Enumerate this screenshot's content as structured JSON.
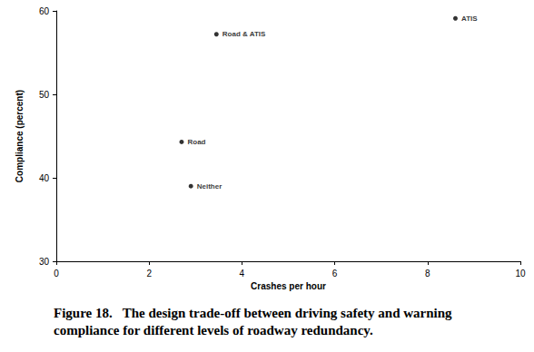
{
  "chart_data": {
    "type": "scatter",
    "title": "Figure 18.   The design trade-off between driving safety and warning compliance for different levels of roadway redundancy.",
    "x_label": "Crashes per hour",
    "y_label": "Compliance (percent)",
    "x": [
      3.45,
      8.6,
      2.7,
      2.9
    ],
    "values": [
      57.2,
      59.1,
      44.3,
      39.0
    ],
    "labels": [
      "Road & ATIS",
      "ATIS",
      "Road",
      "Neither"
    ],
    "color": "#000000",
    "marker": "circle",
    "xlim": [
      0,
      10
    ],
    "xticks": [
      0,
      2,
      4,
      6,
      8,
      10
    ],
    "ylim": [
      30,
      60
    ],
    "yticks": [
      30,
      40,
      50,
      60
    ],
    "grid": false
  }
}
